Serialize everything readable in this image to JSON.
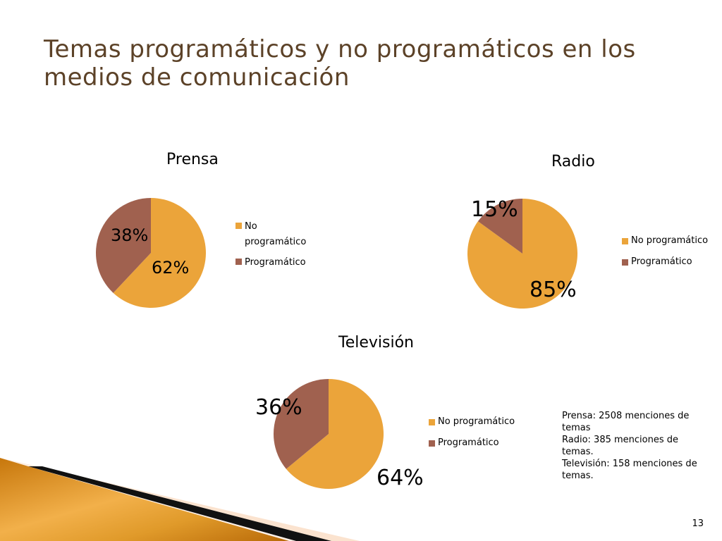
{
  "slide": {
    "title": "Temas programáticos y no programáticos en los medios de comunicación",
    "page_number": "13",
    "notes": [
      "Prensa: 2508 menciones de temas",
      "Radio: 385 menciones de temas.",
      "Televisión: 158 menciones de temas."
    ]
  },
  "colors": {
    "no_programatico": "#eba43a",
    "programatico": "#a0614f",
    "title": "#5c4228"
  },
  "chart_data": [
    {
      "type": "pie",
      "title": "Prensa",
      "categories": [
        "No programático",
        "Programático"
      ],
      "values": [
        62,
        38
      ],
      "labels": [
        "62%",
        "38%"
      ],
      "legend": [
        "No programático",
        "Programático"
      ],
      "legend_position": "right"
    },
    {
      "type": "pie",
      "title": "Radio",
      "categories": [
        "No programático",
        "Programático"
      ],
      "values": [
        85,
        15
      ],
      "labels": [
        "85%",
        "15%"
      ],
      "legend": [
        "No programático",
        "Programático"
      ],
      "legend_position": "right"
    },
    {
      "type": "pie",
      "title": "Televisión",
      "categories": [
        "No programático",
        "Programático"
      ],
      "values": [
        64,
        36
      ],
      "labels": [
        "64%",
        "36%"
      ],
      "legend": [
        "No programático",
        "Programático"
      ],
      "legend_position": "right"
    }
  ]
}
